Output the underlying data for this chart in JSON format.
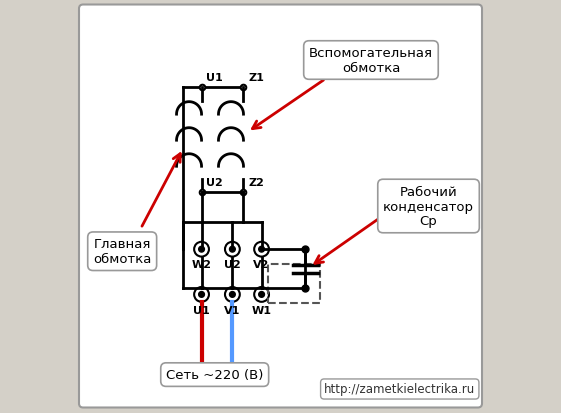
{
  "bg_color": "#d4d0c8",
  "wire_color": "#000000",
  "red_wire": "#cc0000",
  "blue_wire": "#5599ff",
  "arrow_color": "#cc0000",
  "label_glavnaya": "Главная\nобмотка",
  "label_vspom": "Вспомогательная\nобмотка",
  "label_rabochiy": "Рабочий\nконденсатор\nСр",
  "label_set": "Сеть ~220 (В)",
  "label_url": "http://zametkielectrika.ru",
  "label_U1_top": "U1",
  "label_Z1_top": "Z1",
  "label_U2_mid": "U2",
  "label_Z2_mid": "Z2",
  "label_W2": "W2",
  "label_U2b": "U2",
  "label_V2": "V2",
  "label_U1b": "U1",
  "label_V1": "V1",
  "label_W1": "W1"
}
